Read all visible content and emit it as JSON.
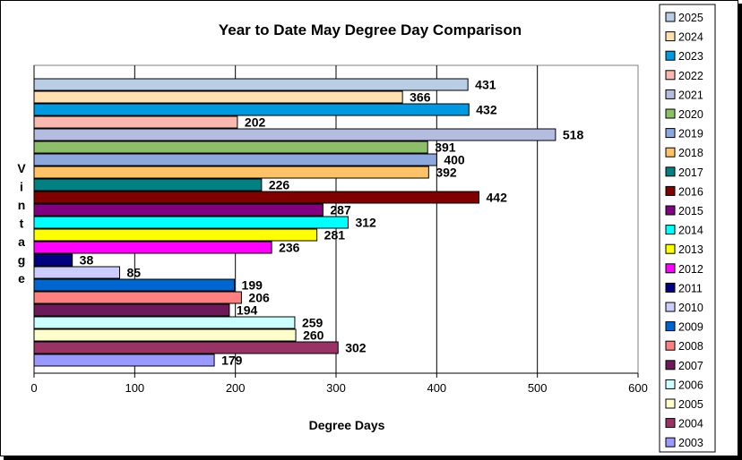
{
  "chart_data": {
    "type": "bar",
    "orientation": "horizontal",
    "title": "Year to Date May Degree Day Comparison",
    "xlabel": "Degree Days",
    "ylabel": "Vintage",
    "xlim": [
      0,
      600
    ],
    "xticks": [
      0,
      100,
      200,
      300,
      400,
      500,
      600
    ],
    "grid": "vertical",
    "legend_position": "right",
    "categories": [
      "2025",
      "2024",
      "2023",
      "2022",
      "2021",
      "2020",
      "2019",
      "2018",
      "2017",
      "2016",
      "2015",
      "2014",
      "2013",
      "2012",
      "2011",
      "2010",
      "2009",
      "2008",
      "2007",
      "2006",
      "2005",
      "2004",
      "2003"
    ],
    "values": [
      431,
      366,
      432,
      202,
      518,
      391,
      400,
      392,
      226,
      442,
      287,
      312,
      281,
      236,
      38,
      85,
      199,
      206,
      194,
      259,
      260,
      302,
      179
    ],
    "data_labels": [
      "431",
      "366",
      "432",
      "202",
      "518",
      "391",
      "400",
      "392",
      "226",
      "442",
      "287",
      "312",
      "281",
      "236",
      "38",
      "85",
      "199",
      "206",
      "194",
      "259",
      "260",
      "302",
      "179"
    ],
    "colors": [
      "#B9CDE5",
      "#FFE0B2",
      "#0099E0",
      "#F8B9B0",
      "#B4BDE0",
      "#8DBF6B",
      "#8CA8DC",
      "#FFC266",
      "#008080",
      "#800000",
      "#800080",
      "#00FFFF",
      "#FFFF00",
      "#FF00FF",
      "#000080",
      "#CCCCFF",
      "#0066CC",
      "#FF8080",
      "#6E1A5A",
      "#CCFFFF",
      "#FFFFCC",
      "#993366",
      "#9999FF"
    ]
  }
}
